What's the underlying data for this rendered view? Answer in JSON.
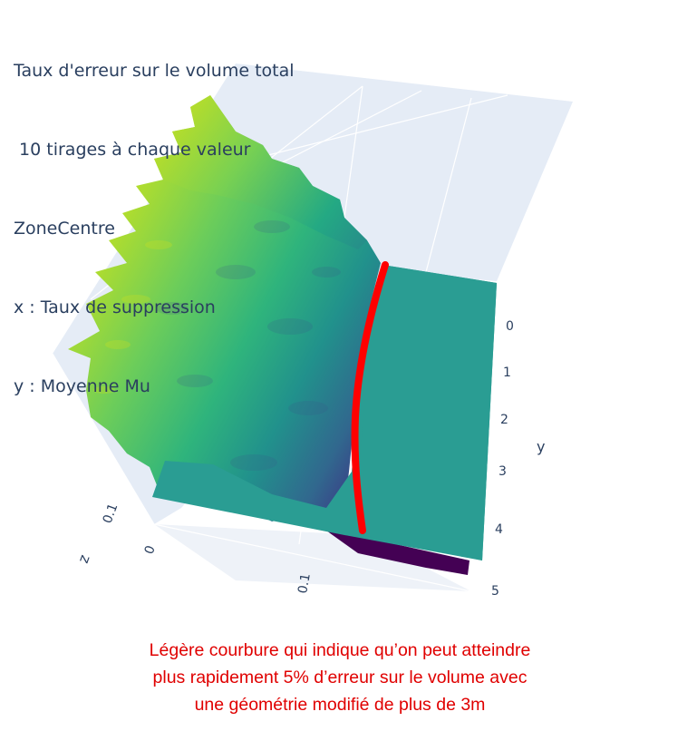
{
  "title_lines": [
    "Taux d'erreur sur le volume total",
    " 10 tirages à chaque valeur",
    "ZoneCentre",
    "x : Taux de suppression",
    "y : Moyenne Mu"
  ],
  "annotation_lines": [
    "Légère courbure qui indique qu’on peut atteindre",
    "plus rapidement 5% d’erreur sur le volume avec",
    "une géométrie modifié de plus de 3m"
  ],
  "colors": {
    "plane": "#2a9d93",
    "highlight_curve": "#ff0000",
    "annotation_text": "#e00000",
    "axis_text": "#2a3f5f",
    "scene_bg": "#e5ecf6",
    "colorscale": [
      "#440154",
      "#3b528b",
      "#21918c",
      "#5ec962",
      "#fde725"
    ]
  },
  "chart_data": {
    "type": "surface3d",
    "axes": {
      "x": {
        "title": "",
        "ticks": [
          "0.1"
        ]
      },
      "y": {
        "title": "y",
        "ticks": [
          "0",
          "1",
          "2",
          "3",
          "4",
          "5"
        ],
        "range": [
          0,
          5
        ]
      },
      "z": {
        "title": "z",
        "ticks": [
          "0",
          "0.1"
        ]
      }
    },
    "grid": true,
    "colorscale": "viridis",
    "traces": [
      "error-rate surface",
      "flat reference plane"
    ],
    "highlight": "curve marking the surface / plane intersection"
  }
}
